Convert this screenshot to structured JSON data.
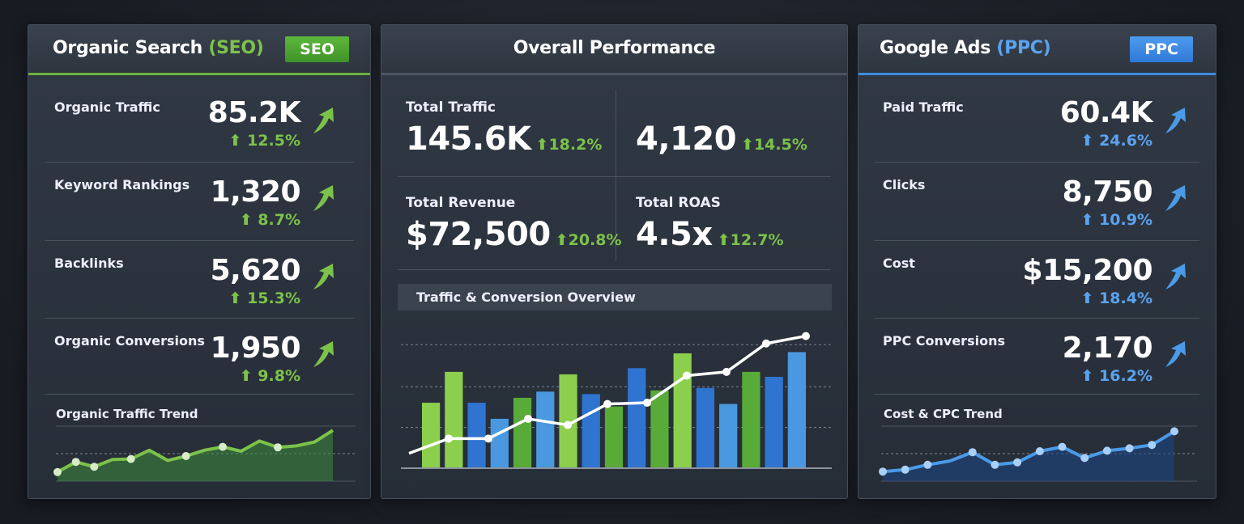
{
  "seo": {
    "title": "Organic Search",
    "title_tag": "(SEO)",
    "badge": "SEO",
    "accent": "#7cc24a",
    "metrics": [
      {
        "label": "Organic Traffic",
        "value": "85.2K",
        "change": "12.5%"
      },
      {
        "label": "Keyword Rankings",
        "value": "1,320",
        "change": "8.7%"
      },
      {
        "label": "Backlinks",
        "value": "5,620",
        "change": "15.3%"
      },
      {
        "label": "Organic Conversions",
        "value": "1,950",
        "change": "9.8%"
      }
    ],
    "trend": {
      "title": "Organic Traffic Trend",
      "values": [
        17,
        38,
        28,
        43,
        44,
        62,
        41,
        50,
        62,
        69,
        60,
        81,
        68,
        71,
        79,
        103
      ],
      "markers": [
        0,
        1,
        2,
        4,
        7,
        9,
        12
      ],
      "ylim": [
        0,
        110
      ]
    }
  },
  "overall": {
    "title": "Overall Performance",
    "metrics": [
      {
        "label": "Total Traffic",
        "value": "145.6K",
        "change": "18.2%"
      },
      {
        "label": "",
        "value": "4,120",
        "change": "14.5%"
      },
      {
        "label": "Total Revenue",
        "value": "$72,500",
        "change": "20.8%"
      },
      {
        "label": "Total ROAS",
        "value": "4.5x",
        "change": "12.7%"
      }
    ],
    "chart_title": "Traffic & Conversion Overview"
  },
  "ppc": {
    "title": "Google Ads",
    "title_tag": "(PPC)",
    "badge": "PPC",
    "accent": "#4a90e2",
    "metrics": [
      {
        "label": "Paid Traffic",
        "value": "60.4K",
        "change": "24.6%"
      },
      {
        "label": "Clicks",
        "value": "8,750",
        "change": "10.9%"
      },
      {
        "label": "Cost",
        "value": "$15,200",
        "change": "18.4%"
      },
      {
        "label": "PPC Conversions",
        "value": "2,170",
        "change": "16.2%"
      }
    ],
    "trend": {
      "title": "Cost & CPC Trend",
      "values": [
        18,
        22,
        32,
        40,
        58,
        32,
        37,
        60,
        69,
        46,
        61,
        66,
        73,
        101
      ],
      "markers": [
        0,
        1,
        2,
        4,
        5,
        6,
        7,
        8,
        9,
        10,
        11,
        12,
        13
      ],
      "ylim": [
        0,
        110
      ]
    }
  },
  "chart_data": {
    "type": "bar",
    "title": "Traffic & Conversion Overview",
    "ylim": [
      0,
      110
    ],
    "grid": true,
    "bars": {
      "values": [
        53,
        78,
        53,
        40,
        57,
        62,
        76,
        60,
        50,
        81,
        63,
        93,
        65,
        52,
        78,
        74,
        94
      ],
      "colors": [
        "#8ccf4d",
        "#8ccf4d",
        "#2f74d0",
        "#4a98e0",
        "#58ab38",
        "#4a98e0",
        "#8ccf4d",
        "#2f74d0",
        "#58ab38",
        "#2f74d0",
        "#58ab38",
        "#8ccf4d",
        "#2f74d0",
        "#4a98e0",
        "#58ab38",
        "#2f74d0",
        "#4a98e0"
      ]
    },
    "line": {
      "values": [
        12,
        24,
        24,
        40,
        35,
        52,
        53,
        75,
        78,
        101,
        107
      ],
      "color": "#ffffff"
    },
    "x_tick_count": 8
  }
}
